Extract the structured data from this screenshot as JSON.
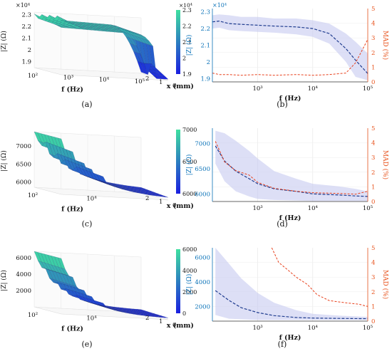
{
  "colors": {
    "impedance": "#1f3c8f",
    "mad": "#e8401c",
    "band": "#c7c9f0",
    "left_axis": "#0a72b8",
    "right_axis": "#e8541e",
    "surface_low": "#1a1ee0",
    "surface_high": "#3fe0a0"
  },
  "panels": [
    {
      "id": "a",
      "caption": "(a)"
    },
    {
      "id": "b",
      "caption": "(b)"
    },
    {
      "id": "c",
      "caption": "(c)"
    },
    {
      "id": "d",
      "caption": "(d)"
    },
    {
      "id": "e",
      "caption": "(e)"
    },
    {
      "id": "f",
      "caption": "(f)"
    }
  ],
  "chart_data": [
    {
      "panel": "a",
      "type": "surface",
      "zlabel": "|Z| (Ω)",
      "xlabel": "f (Hz)",
      "ylabel": "x (mm)",
      "zscale": "×10⁴",
      "z_ticks": [
        "1.9",
        "2",
        "2.1",
        "2.2",
        "2.3"
      ],
      "f_ticks": [
        "10²",
        "10³",
        "10⁴",
        "10⁵"
      ],
      "x_ticks": [
        "0",
        "1",
        "2"
      ],
      "colorbar_ticks": [
        "1.9",
        "2",
        "2.1",
        "2.2",
        "2.3"
      ],
      "colorbar_scale": "×10⁴",
      "zlim": [
        18500,
        23200
      ]
    },
    {
      "panel": "b",
      "type": "line",
      "xlabel": "f (Hz)",
      "ylabel_left": "|Z| (Ω)",
      "ylabel_right": "MAD (%)",
      "left_scale": "×10⁴",
      "x_ticks": [
        "10³",
        "10⁴",
        "10⁵"
      ],
      "left_ticks": [
        "1.9",
        "2",
        "2.1",
        "2.2",
        "2.3"
      ],
      "right_ticks": [
        "0",
        "1",
        "2",
        "3",
        "4",
        "5"
      ],
      "xlim": [
        150,
        100000
      ],
      "ylim_left": [
        18800,
        23200
      ],
      "ylim_right": [
        0,
        5
      ],
      "x": [
        150,
        200,
        300,
        500,
        1000,
        2000,
        5000,
        10000,
        20000,
        40000,
        60000,
        100000
      ],
      "series": [
        {
          "axis": "left",
          "values": [
            22400,
            22450,
            22300,
            22250,
            22200,
            22150,
            22100,
            22000,
            21700,
            20800,
            20100,
            19300
          ]
        },
        {
          "axis": "right",
          "values": [
            0.6,
            0.5,
            0.5,
            0.45,
            0.5,
            0.45,
            0.5,
            0.45,
            0.5,
            0.6,
            1.3,
            2.9
          ]
        }
      ],
      "band_left": {
        "upper": [
          22800,
          22850,
          22800,
          22700,
          22700,
          22600,
          22600,
          22500,
          22300,
          21700,
          21200,
          20500
        ],
        "lower": [
          22000,
          22050,
          21900,
          21850,
          21800,
          21750,
          21650,
          21500,
          21100,
          20000,
          19100,
          18900
        ]
      }
    },
    {
      "panel": "c",
      "type": "surface",
      "zlabel": "|Z| (Ω)",
      "xlabel": "f (Hz)",
      "ylabel": "x (mm)",
      "z_ticks": [
        "6000",
        "6500",
        "7000"
      ],
      "f_ticks": [
        "10²",
        "10⁴"
      ],
      "x_ticks": [
        "0",
        "1",
        "2"
      ],
      "colorbar_ticks": [
        "6000",
        "6500",
        "7000"
      ],
      "zlim": [
        5850,
        7400
      ]
    },
    {
      "panel": "d",
      "type": "line",
      "xlabel": "f (Hz)",
      "ylabel_left": "|Z| (Ω)",
      "ylabel_right": "MAD (%)",
      "x_ticks": [
        "10³",
        "10⁴",
        "10⁵"
      ],
      "left_ticks": [
        "6000",
        "6500",
        "7000"
      ],
      "right_ticks": [
        "0",
        "1",
        "2",
        "3",
        "4",
        "5"
      ],
      "xlim": [
        150,
        100000
      ],
      "ylim_left": [
        5850,
        7300
      ],
      "ylim_right": [
        0,
        5
      ],
      "x": [
        170,
        250,
        400,
        700,
        1000,
        2000,
        5000,
        10000,
        30000,
        60000,
        100000
      ],
      "series": [
        {
          "axis": "left",
          "values": [
            6950,
            6650,
            6450,
            6300,
            6200,
            6100,
            6050,
            6000,
            5980,
            5960,
            5950
          ]
        },
        {
          "axis": "right",
          "values": [
            4.1,
            2.7,
            2.1,
            1.8,
            1.3,
            0.9,
            0.7,
            0.6,
            0.55,
            0.5,
            0.7
          ]
        }
      ],
      "band_left": {
        "upper": [
          7250,
          7200,
          7050,
          6850,
          6700,
          6450,
          6300,
          6200,
          6150,
          6100,
          6050
        ],
        "lower": [
          6600,
          6250,
          6050,
          5950,
          5900,
          5880,
          5870,
          5860,
          5860,
          5860,
          5860
        ]
      }
    },
    {
      "panel": "e",
      "type": "surface",
      "zlabel": "|Z| (Ω)",
      "xlabel": "f (Hz)",
      "ylabel": "x (mm)",
      "z_ticks": [
        "2000",
        "4000",
        "6000"
      ],
      "f_ticks": [
        "10²",
        "10⁴"
      ],
      "x_ticks": [
        "0",
        "1",
        "2"
      ],
      "colorbar_ticks": [
        "0",
        "2000",
        "4000",
        "6000"
      ],
      "zlim": [
        0,
        6800
      ]
    },
    {
      "panel": "f",
      "type": "line",
      "xlabel": "f (Hz)",
      "ylabel_left": "|Z| (Ω)",
      "ylabel_right": "MAD (%)",
      "x_ticks": [
        "10³",
        "10⁴",
        "10⁵"
      ],
      "left_ticks": [
        "2000",
        "4000",
        "6000"
      ],
      "right_ticks": [
        "0",
        "1",
        "2",
        "3",
        "4",
        "5"
      ],
      "xlim": [
        150,
        100000
      ],
      "ylim_left": [
        800,
        6800
      ],
      "ylim_right": [
        0,
        5
      ],
      "x": [
        170,
        300,
        500,
        1000,
        2000,
        5000,
        10000,
        30000,
        100000
      ],
      "series": [
        {
          "axis": "left",
          "values": [
            3300,
            2500,
            1900,
            1500,
            1250,
            1100,
            1050,
            1020,
            1000
          ]
        },
        {
          "axis": "right",
          "values": [
            null,
            null,
            null,
            null,
            5.0,
            2.8,
            1.8,
            1.3,
            1.0
          ]
        }
      ],
      "series_mad_full": {
        "x": [
          1800,
          2400,
          3500,
          5000,
          8000,
          12000,
          20000,
          40000,
          70000,
          100000
        ],
        "values": [
          5.0,
          4.0,
          3.5,
          3.0,
          2.5,
          1.8,
          1.4,
          1.25,
          1.15,
          1.0
        ]
      },
      "band_left": {
        "upper": [
          6800,
          5500,
          4300,
          3100,
          2300,
          1700,
          1400,
          1250,
          1150
        ],
        "lower": [
          1300,
          1000,
          950,
          900,
          900,
          900,
          900,
          900,
          900
        ]
      }
    }
  ]
}
